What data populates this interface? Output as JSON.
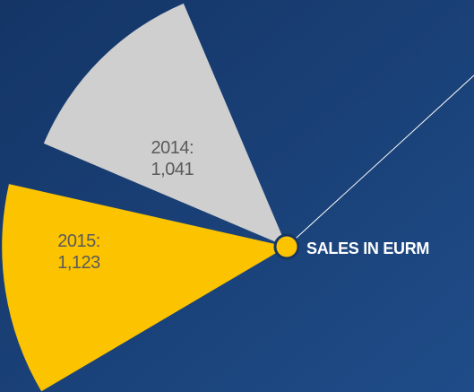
{
  "chart_data": {
    "type": "polar",
    "title": "SALES IN EURM",
    "categories": [
      "2014:",
      "2015:"
    ],
    "values": [
      1041,
      1123
    ],
    "value_labels": [
      "1,041",
      "1,123"
    ],
    "colors": [
      "#cfcfcf",
      "#fcc300"
    ]
  }
}
